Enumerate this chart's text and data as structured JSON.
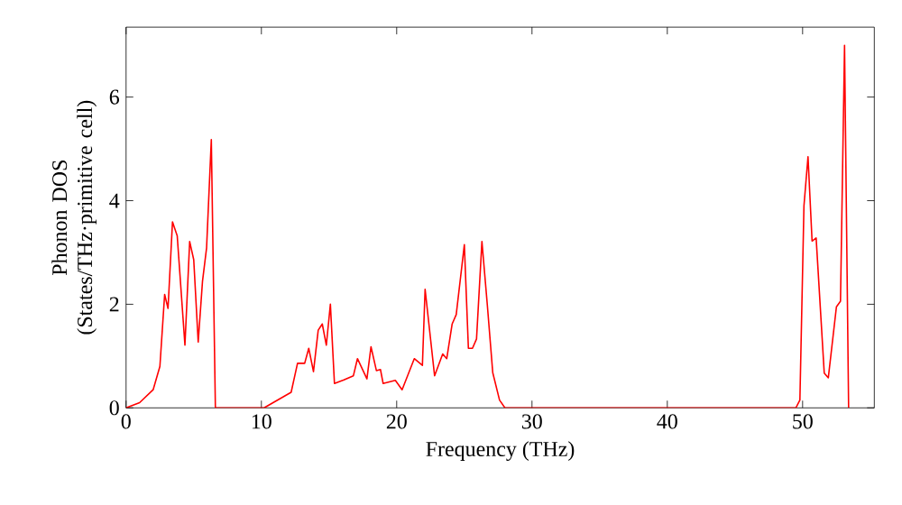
{
  "chart_data": {
    "type": "line",
    "xlabel": "Frequency (THz)",
    "ylabel": "Phonon DOS\n(States/THz·primitive cell)",
    "xlim": [
      0,
      55.3
    ],
    "ylim": [
      0,
      7.35
    ],
    "xticks": [
      0,
      10,
      20,
      30,
      40,
      50
    ],
    "yticks": [
      0,
      2,
      4,
      6
    ],
    "grid": false,
    "marker": "none",
    "line_style": "solid",
    "series": [
      {
        "color": "#ff0000",
        "x": [
          0,
          1,
          2,
          2.5,
          2.85,
          3.1,
          3.43,
          3.78,
          4.35,
          4.7,
          5.0,
          5.33,
          5.65,
          5.95,
          6.3,
          6.6,
          10.2,
          12.2,
          12.67,
          13.2,
          13.5,
          13.85,
          14.2,
          14.5,
          14.8,
          15.1,
          15.4,
          16.1,
          16.8,
          17.1,
          17.8,
          18.1,
          18.5,
          18.8,
          19.0,
          19.9,
          20.4,
          21.3,
          21.9,
          22.1,
          22.8,
          23.4,
          23.7,
          24.1,
          24.4,
          25.0,
          25.3,
          25.6,
          25.9,
          26.3,
          26.7,
          27.1,
          27.6,
          28.0,
          49.5,
          49.8,
          50.1,
          50.4,
          50.7,
          51.0,
          51.6,
          51.9,
          52.5,
          52.8,
          53.1,
          53.4
        ],
        "values": [
          0,
          0.1,
          0.35,
          0.8,
          2.19,
          1.92,
          3.59,
          3.32,
          1.21,
          3.21,
          2.86,
          1.27,
          2.45,
          3.09,
          5.18,
          0,
          0,
          0.3,
          0.86,
          0.86,
          1.15,
          0.7,
          1.5,
          1.62,
          1.21,
          2.0,
          0.47,
          0.54,
          0.62,
          0.95,
          0.56,
          1.18,
          0.72,
          0.74,
          0.47,
          0.53,
          0.35,
          0.95,
          0.82,
          2.29,
          0.62,
          1.04,
          0.95,
          1.62,
          1.8,
          3.15,
          1.15,
          1.15,
          1.33,
          3.21,
          1.98,
          0.68,
          0.15,
          0,
          0,
          0.15,
          3.9,
          4.85,
          3.22,
          3.28,
          0.67,
          0.58,
          1.95,
          2.06,
          7.0,
          0
        ]
      }
    ]
  }
}
